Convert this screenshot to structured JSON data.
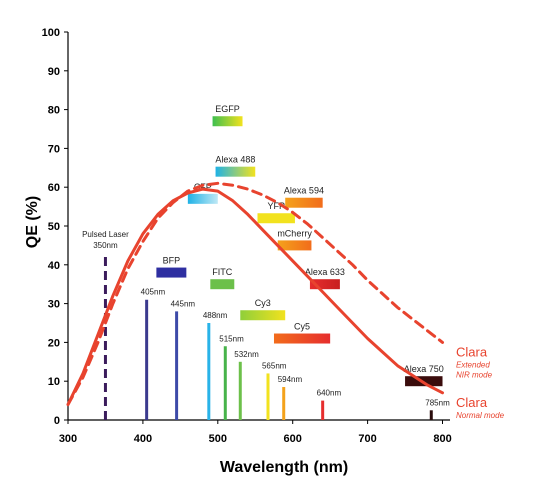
{
  "chart_data": {
    "type": "line",
    "xlabel": "Wavelength (nm)",
    "ylabel": "QE (%)",
    "xlim": [
      300,
      810
    ],
    "ylim": [
      0,
      100
    ],
    "x_ticks": [
      300,
      400,
      500,
      600,
      700,
      800
    ],
    "y_ticks": [
      0,
      10,
      20,
      30,
      40,
      50,
      60,
      70,
      80,
      90,
      100
    ],
    "series": [
      {
        "name": "Clara",
        "mode_label": "Normal mode",
        "style": "solid",
        "color": "#e8432e",
        "x": [
          300,
          320,
          340,
          360,
          380,
          400,
          420,
          440,
          460,
          480,
          500,
          520,
          540,
          560,
          580,
          600,
          620,
          640,
          660,
          680,
          700,
          720,
          740,
          760,
          780,
          800
        ],
        "y": [
          4,
          12,
          22,
          32,
          41,
          48,
          53,
          56.5,
          58.5,
          59.5,
          59,
          56.5,
          53,
          49,
          45,
          41,
          37,
          33,
          29,
          25,
          21,
          17.5,
          14,
          11.5,
          9,
          7
        ]
      },
      {
        "name": "Clara",
        "mode_label": "Extended NIR mode",
        "style": "dashed",
        "color": "#e8432e",
        "x": [
          300,
          320,
          340,
          360,
          380,
          400,
          420,
          440,
          460,
          480,
          500,
          520,
          540,
          560,
          580,
          600,
          620,
          640,
          660,
          680,
          700,
          720,
          740,
          760,
          780,
          800
        ],
        "y": [
          4,
          11,
          20,
          30,
          39,
          46,
          52,
          56,
          59,
          60.5,
          61,
          60.5,
          59.5,
          58,
          56,
          53.5,
          50.5,
          47,
          43.5,
          40,
          36,
          32.5,
          29,
          26,
          23,
          20
        ]
      }
    ],
    "laser_lines": [
      {
        "label": "Pulsed Laser",
        "wavelength": 350,
        "label2": "350nm",
        "color": "#3b1c5c",
        "height": 42,
        "dashed": true
      },
      {
        "label": "405nm",
        "wavelength": 405,
        "color": "#3b3a8e",
        "height": 31
      },
      {
        "label": "445nm",
        "wavelength": 445,
        "color": "#3d4aa8",
        "height": 28
      },
      {
        "label": "488nm",
        "wavelength": 488,
        "color": "#29b3e8",
        "height": 25
      },
      {
        "label": "515nm",
        "wavelength": 510,
        "color": "#47b34a",
        "height": 19
      },
      {
        "label": "532nm",
        "wavelength": 530,
        "color": "#6cc04a",
        "height": 15
      },
      {
        "label": "565nm",
        "wavelength": 567,
        "color": "#f2e21e",
        "height": 12
      },
      {
        "label": "594nm",
        "wavelength": 588,
        "color": "#f4a21b",
        "height": 8.5
      },
      {
        "label": "640nm",
        "wavelength": 640,
        "color": "#e62e2e",
        "height": 5
      },
      {
        "label": "785nm",
        "wavelength": 785,
        "color": "#2a0c0c",
        "height": 2.5
      }
    ],
    "dyes": [
      {
        "label": "EGFP",
        "start": 493,
        "end": 533,
        "y": 77,
        "colors": [
          "#3fbf4f",
          "#f2e21e"
        ]
      },
      {
        "label": "Alexa 488",
        "start": 497,
        "end": 550,
        "y": 64,
        "colors": [
          "#1fb2e6",
          "#f2e21e"
        ]
      },
      {
        "label": "CFP",
        "start": 460,
        "end": 500,
        "y": 57,
        "colors": [
          "#1fb2e6",
          "#bfe8f5"
        ]
      },
      {
        "label": "Alexa 594",
        "start": 590,
        "end": 640,
        "y": 56,
        "colors": [
          "#f4a21b",
          "#f26c1b"
        ]
      },
      {
        "label": "YFP",
        "start": 553,
        "end": 603,
        "y": 52,
        "colors": [
          "#f2e21e",
          "#f2e21e"
        ]
      },
      {
        "label": "mCherry",
        "start": 580,
        "end": 625,
        "y": 45,
        "colors": [
          "#f4a21b",
          "#f26c1b"
        ]
      },
      {
        "label": "BFP",
        "start": 418,
        "end": 458,
        "y": 38,
        "colors": [
          "#2e2fa1",
          "#2e2fa1"
        ]
      },
      {
        "label": "FITC",
        "start": 490,
        "end": 522,
        "y": 35,
        "colors": [
          "#6cc04a",
          "#6cc04a"
        ]
      },
      {
        "label": "Alexa 633",
        "start": 623,
        "end": 663,
        "y": 35,
        "colors": [
          "#e62e2e",
          "#c81e1e"
        ]
      },
      {
        "label": "Cy3",
        "start": 530,
        "end": 590,
        "y": 27,
        "colors": [
          "#8fcf3a",
          "#f2e21e"
        ]
      },
      {
        "label": "Cy5",
        "start": 575,
        "end": 650,
        "y": 21,
        "colors": [
          "#f26c1b",
          "#e62e2e"
        ]
      },
      {
        "label": "Alexa 750",
        "start": 750,
        "end": 800,
        "y": 10,
        "colors": [
          "#3a0c0c",
          "#3a0c0c"
        ]
      }
    ]
  }
}
